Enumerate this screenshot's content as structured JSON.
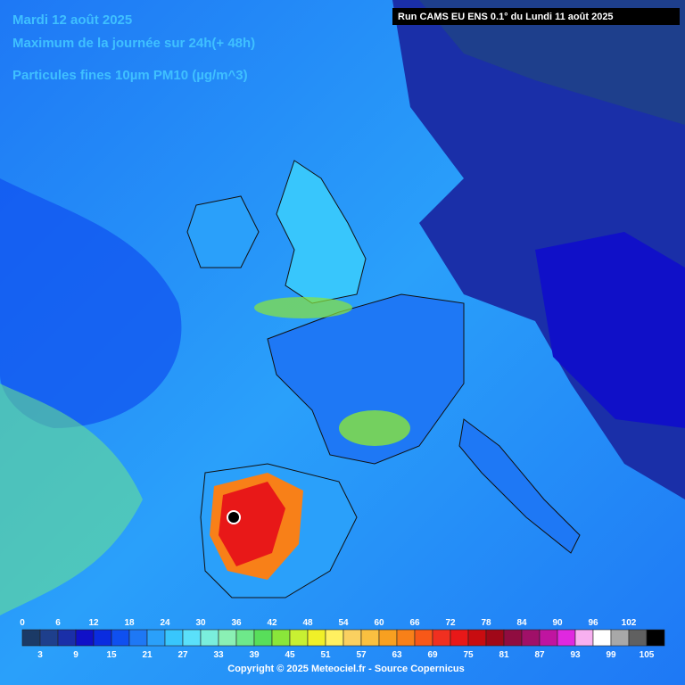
{
  "header": {
    "date": "Mardi 12 août 2025",
    "period": "Maximum de la journée sur 24h(+ 48h)",
    "variable": "Particules fines 10µm PM10 (µg/m^3)",
    "run": "Run CAMS EU ENS 0.1° du Lundi 11 août 2025"
  },
  "legend": {
    "top_labels": [
      0,
      6,
      12,
      18,
      24,
      30,
      36,
      42,
      48,
      54,
      60,
      66,
      72,
      78,
      84,
      90,
      96,
      102
    ],
    "bottom_labels": [
      3,
      9,
      15,
      21,
      27,
      33,
      39,
      45,
      51,
      57,
      63,
      69,
      75,
      81,
      87,
      93,
      99,
      105
    ],
    "colors": [
      "#1b3a66",
      "#1e3f8c",
      "#1a2fa8",
      "#1010c8",
      "#0a2ce0",
      "#0f50f0",
      "#1e78f5",
      "#2aa0fa",
      "#38c6fc",
      "#5ae0fa",
      "#7aeedc",
      "#8af0b4",
      "#6ee88a",
      "#58de5a",
      "#8ae63a",
      "#c8f032",
      "#f0f028",
      "#fff060",
      "#fad060",
      "#fac040",
      "#f8a020",
      "#f88018",
      "#f85818",
      "#f03020",
      "#e81818",
      "#c80c10",
      "#a00818",
      "#900c40",
      "#a01068",
      "#c014a0",
      "#e028e0",
      "#f8b0f0",
      "#ffffff",
      "#a8a8a8",
      "#606060",
      "#000000"
    ]
  },
  "footer": {
    "copyright": "Copyright © 2025 Meteociel.fr - Source Copernicus"
  }
}
